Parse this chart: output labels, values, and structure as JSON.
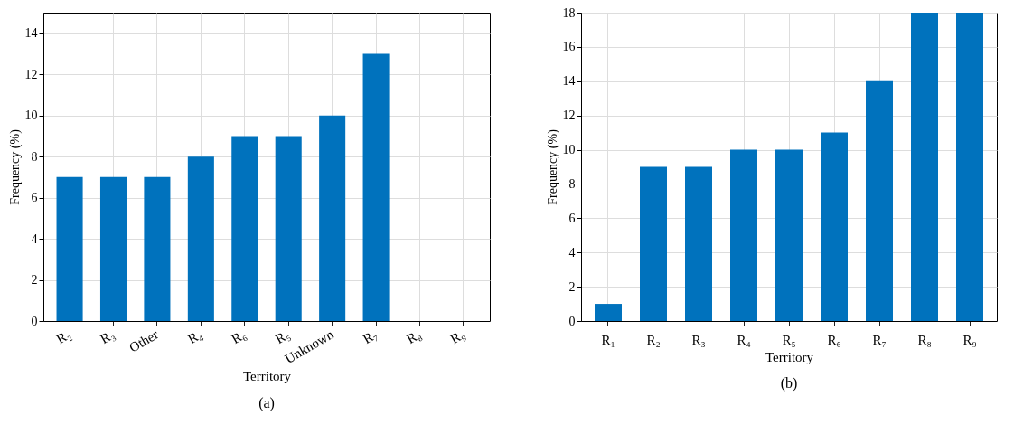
{
  "chart_data": [
    {
      "type": "bar",
      "xlabel": "Territory",
      "ylabel": "Frequency (%)",
      "categories": [
        "R₂",
        "R₃",
        "Other",
        "R₄",
        "R₆",
        "R₅",
        "Unknown",
        "R₇",
        "R₈",
        "R₉"
      ],
      "values": [
        7,
        7,
        7,
        8,
        9,
        9,
        10,
        13,
        null,
        null
      ],
      "color": "#0072bd",
      "ylim": [
        0,
        15
      ],
      "yticks": [
        0,
        2,
        4,
        6,
        8,
        10,
        12,
        14
      ],
      "grid": true,
      "annotations": [
        "(a)"
      ]
    },
    {
      "type": "bar",
      "xlabel": "Territory",
      "ylabel": "Frequency (%)",
      "categories": [
        "R₁",
        "R₂",
        "R₃",
        "R₄",
        "R₅",
        "R₆",
        "R₇",
        "R₈",
        "R₉"
      ],
      "values": [
        1,
        9,
        9,
        10,
        10,
        11,
        14,
        18,
        18
      ],
      "color": "#0072bd",
      "ylim": [
        0,
        18
      ],
      "yticks": [
        0,
        2,
        4,
        6,
        8,
        10,
        12,
        14,
        16,
        18
      ],
      "grid": true,
      "annotations": [
        "(b)"
      ]
    }
  ]
}
